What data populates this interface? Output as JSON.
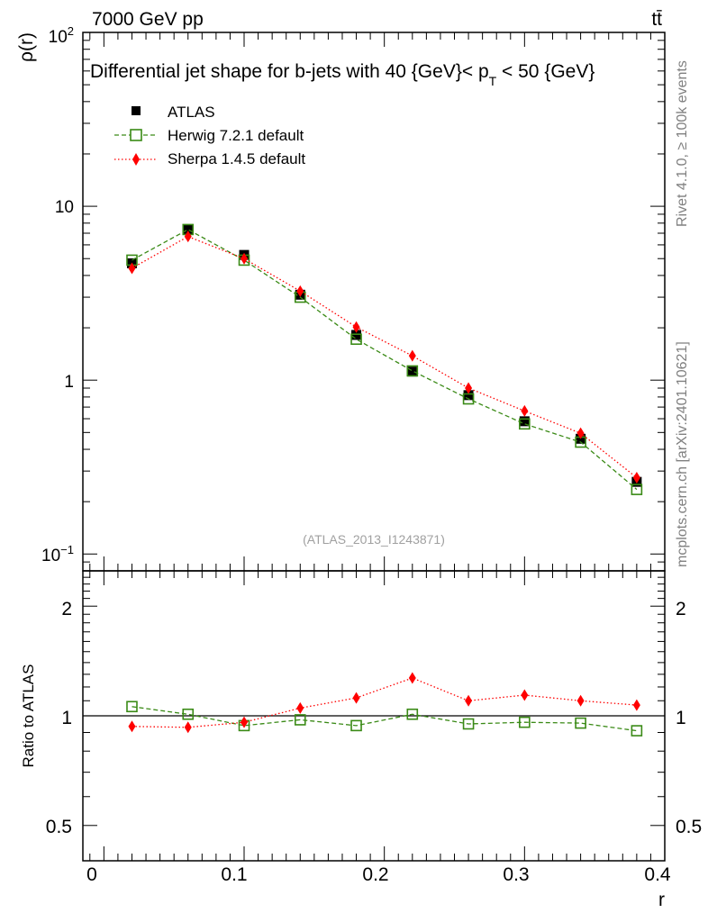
{
  "header": {
    "energy_label": "7000 GeV pp",
    "process_label": "tt̄"
  },
  "side_labels": {
    "rivet": "Rivet 4.1.0, ≥ 100k events",
    "source": "mcplots.cern.ch [arXiv:2401.10621]"
  },
  "chart_data": [
    {
      "type": "line",
      "panel": "main",
      "title": "Differential jet shape for b-jets with 40 {GeV}< p_T < 50 {GeV}",
      "title_parts": {
        "main": "Differential jet shape for b-jets with 40 {GeV}< p",
        "sub": "T",
        "tail": " < 50 {GeV}"
      },
      "ylabel": "ρ(r)",
      "yscale": "log",
      "ylim": [
        0.08,
        100
      ],
      "xlim": [
        -0.015,
        0.4
      ],
      "ytick_labels": {
        "1e2": "10²",
        "10": "10",
        "1": "1",
        "1e-1": "10⁻¹"
      },
      "watermark": "(ATLAS_2013_I1243871)",
      "legend_position": "top-left",
      "x": [
        0.02,
        0.06,
        0.1,
        0.14,
        0.18,
        0.22,
        0.26,
        0.3,
        0.34,
        0.38
      ],
      "series": [
        {
          "name": "ATLAS",
          "marker": "filled-square",
          "color": "#000000",
          "values": [
            4.7,
            7.3,
            5.25,
            3.1,
            1.82,
            1.12,
            0.82,
            0.58,
            0.46,
            0.26
          ]
        },
        {
          "name": "Herwig 7.2.1 default",
          "marker": "open-square",
          "color": "#3a8a16",
          "line": "dashed",
          "values": [
            4.9,
            7.35,
            4.9,
            3.0,
            1.72,
            1.13,
            0.78,
            0.56,
            0.44,
            0.235
          ]
        },
        {
          "name": "Sherpa 1.4.5 default",
          "marker": "filled-diamond",
          "color": "#ff0000",
          "line": "dotted",
          "values": [
            4.4,
            6.7,
            5.0,
            3.25,
            2.02,
            1.38,
            0.9,
            0.665,
            0.495,
            0.275
          ]
        }
      ]
    },
    {
      "type": "line",
      "panel": "ratio",
      "ylabel": "Ratio to ATLAS",
      "xlabel": "r",
      "yscale": "log",
      "ylim": [
        0.4,
        2.5
      ],
      "xlim": [
        -0.015,
        0.4
      ],
      "ytick_labels": [
        "0.5",
        "1",
        "2"
      ],
      "xtick_labels": [
        "0",
        "0.1",
        "0.2",
        "0.3",
        "0.4"
      ],
      "reference_line": 1.0,
      "x": [
        0.02,
        0.06,
        0.1,
        0.14,
        0.18,
        0.22,
        0.26,
        0.3,
        0.34,
        0.38
      ],
      "series": [
        {
          "name": "Herwig 7.2.1 default",
          "marker": "open-square",
          "color": "#3a8a16",
          "line": "dashed",
          "values": [
            1.06,
            1.01,
            0.94,
            0.975,
            0.94,
            1.01,
            0.95,
            0.96,
            0.955,
            0.91
          ]
        },
        {
          "name": "Sherpa 1.4.5 default",
          "marker": "filled-diamond",
          "color": "#ff0000",
          "line": "dotted",
          "values": [
            0.935,
            0.93,
            0.96,
            1.05,
            1.12,
            1.27,
            1.1,
            1.14,
            1.1,
            1.07
          ]
        }
      ]
    }
  ]
}
